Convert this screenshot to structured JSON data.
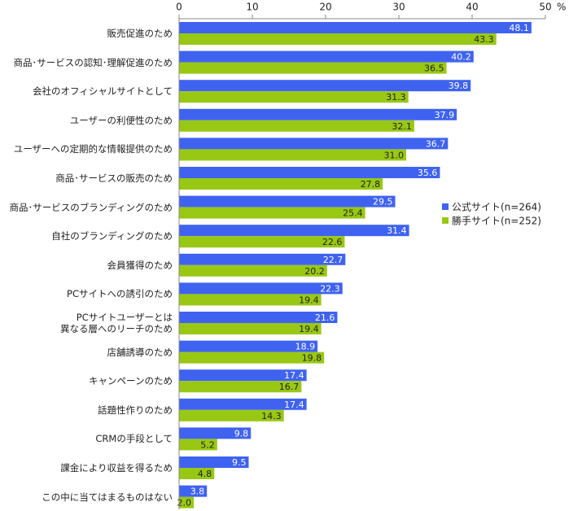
{
  "chart_data": {
    "type": "hbar",
    "categories": [
      "販売促進のため",
      "商品･サービスの認知･理解促進のため",
      "会社のオフィシャルサイトとして",
      "ユーザーの利便性のため",
      "ユーザーへの定期的な情報提供のため",
      "商品･サービスの販売のため",
      "商品･サービスのブランディングのため",
      "自社のブランディングのため",
      "会員獲得のため",
      "PCサイトへの誘引のため",
      "PCサイトユーザーとは\n異なる層へのリーチのため",
      "店舗誘導のため",
      "キャンペーンのため",
      "話題性作りのため",
      "CRMの手段として",
      "課金により収益を得るため",
      "この中に当てはまるものはない"
    ],
    "series": [
      {
        "name": "公式サイト(n=264)",
        "color": "#3f63f0",
        "values": [
          48.1,
          40.2,
          39.8,
          37.9,
          36.7,
          35.6,
          29.5,
          31.4,
          22.7,
          22.3,
          21.6,
          18.9,
          17.4,
          17.4,
          9.8,
          9.5,
          3.8
        ],
        "value_labels": [
          "48.1",
          "40.2",
          "39.8",
          "37.9",
          "36.7",
          "35.6",
          "29.5",
          "31.4",
          "22.7",
          "22.3",
          "21.6",
          "18.9",
          "17.4",
          "17.4",
          "9.8",
          "9.5",
          "3.8"
        ]
      },
      {
        "name": "勝手サイト(n=252)",
        "color": "#99c814",
        "values": [
          43.3,
          36.5,
          31.3,
          32.1,
          31.0,
          27.8,
          25.4,
          22.6,
          20.2,
          19.4,
          19.4,
          19.8,
          16.7,
          14.3,
          5.2,
          4.8,
          2.0
        ],
        "value_labels": [
          "43.3",
          "36.5",
          "31.3",
          "32.1",
          "31.0",
          "27.8",
          "25.4",
          "22.6",
          "20.2",
          "19.4",
          "19.4",
          "19.8",
          "16.7",
          "14.3",
          "5.2",
          "4.8",
          "2.0"
        ]
      }
    ],
    "xlim": [
      0,
      50
    ],
    "xticks": [
      0,
      10,
      20,
      30,
      40,
      50
    ],
    "x_unit": "%",
    "grid": false,
    "legend": "right"
  }
}
